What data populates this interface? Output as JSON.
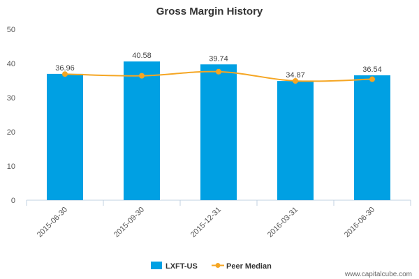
{
  "chart_data": {
    "type": "bar",
    "title": "Gross Margin History",
    "categories": [
      "2015-06-30",
      "2015-09-30",
      "2015-12-31",
      "2016-03-31",
      "2016-06-30"
    ],
    "series": [
      {
        "name": "LXFT-US",
        "type": "bar",
        "color": "#00a0e3",
        "values": [
          36.96,
          40.58,
          39.74,
          34.87,
          36.54
        ],
        "labels": [
          "36.96",
          "40.58",
          "39.74",
          "34.87",
          "36.54"
        ]
      },
      {
        "name": "Peer Median",
        "type": "line",
        "color": "#f5a623",
        "values": [
          36.9,
          36.4,
          37.6,
          34.9,
          35.4
        ]
      }
    ],
    "ylim": [
      0,
      50
    ],
    "yticks": [
      0,
      10,
      20,
      30,
      40,
      50
    ],
    "grid": false,
    "legend": "bottom-center"
  },
  "watermark": "www.capitalcube.com"
}
